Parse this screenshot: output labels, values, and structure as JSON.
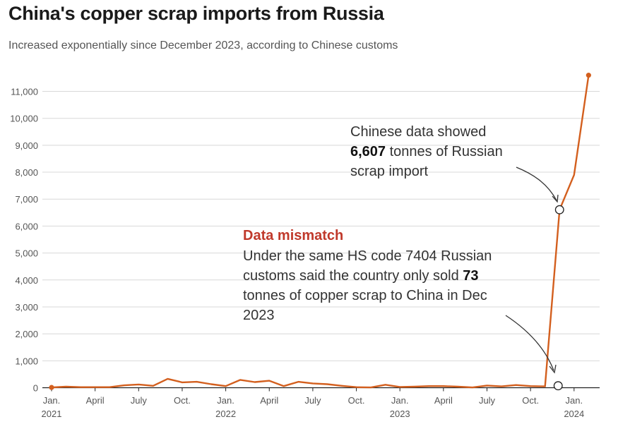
{
  "title": "China's copper scrap imports from Russia",
  "subtitle": "Increased exponentially since  December 2023, according to Chinese customs",
  "colors": {
    "line": "#d35f1e",
    "grid": "#d8d8d8",
    "axis": "#222222",
    "highlight": "#c0392b"
  },
  "chart_data": {
    "type": "line",
    "title": "China's copper scrap imports from Russia",
    "xlabel": "",
    "ylabel": "",
    "ylim": [
      0,
      11600
    ],
    "yticks": [
      0,
      1000,
      2000,
      3000,
      4000,
      5000,
      6000,
      7000,
      8000,
      9000,
      10000,
      11000
    ],
    "ytick_labels": [
      "0",
      "1,000",
      "2,000",
      "3,000",
      "4,000",
      "5,000",
      "6,000",
      "7,000",
      "8,000",
      "9,000",
      "10,000",
      "11,000"
    ],
    "xticks": [
      {
        "label": "Jan.",
        "sub": "2021",
        "index": 0
      },
      {
        "label": "April",
        "sub": "",
        "index": 3
      },
      {
        "label": "July",
        "sub": "",
        "index": 6
      },
      {
        "label": "Oct.",
        "sub": "",
        "index": 9
      },
      {
        "label": "Jan.",
        "sub": "2022",
        "index": 12
      },
      {
        "label": "April",
        "sub": "",
        "index": 15
      },
      {
        "label": "July",
        "sub": "",
        "index": 18
      },
      {
        "label": "Oct.",
        "sub": "",
        "index": 21
      },
      {
        "label": "Jan.",
        "sub": "2023",
        "index": 24
      },
      {
        "label": "April",
        "sub": "",
        "index": 27
      },
      {
        "label": "July",
        "sub": "",
        "index": 30
      },
      {
        "label": "Oct.",
        "sub": "",
        "index": 33
      },
      {
        "label": "Jan.",
        "sub": "2024",
        "index": 36
      }
    ],
    "x": [
      "2021-01",
      "2021-02",
      "2021-03",
      "2021-04",
      "2021-05",
      "2021-06",
      "2021-07",
      "2021-08",
      "2021-09",
      "2021-10",
      "2021-11",
      "2021-12",
      "2022-01",
      "2022-02",
      "2022-03",
      "2022-04",
      "2022-05",
      "2022-06",
      "2022-07",
      "2022-08",
      "2022-09",
      "2022-10",
      "2022-11",
      "2022-12",
      "2023-01",
      "2023-02",
      "2023-03",
      "2023-04",
      "2023-05",
      "2023-06",
      "2023-07",
      "2023-08",
      "2023-09",
      "2023-10",
      "2023-11",
      "2023-12",
      "2024-01",
      "2024-02"
    ],
    "series": [
      {
        "values": [
          10,
          40,
          20,
          20,
          20,
          90,
          120,
          70,
          330,
          200,
          220,
          130,
          60,
          290,
          210,
          260,
          60,
          220,
          160,
          130,
          70,
          20,
          10,
          110,
          30,
          40,
          60,
          60,
          40,
          10,
          80,
          50,
          100,
          60,
          50,
          6607,
          7900,
          11600
        ]
      }
    ],
    "highlighted_points": [
      {
        "x": "2023-12",
        "value": 6607,
        "label": "Chinese customs"
      },
      {
        "x": "2023-12",
        "value": 73,
        "label": "Russian customs"
      }
    ],
    "annotations": {
      "china": {
        "line1": "Chinese data showed",
        "value": "6,607",
        "line2_rest": " tonnes of Russian",
        "line3": "scrap import"
      },
      "mismatch": {
        "heading": "Data mismatch",
        "line1": "Under the same HS code 7404 Russian",
        "line2_pre": "customs said the country only sold ",
        "value": "73",
        "line3": "tonnes of copper scrap to China in Dec",
        "line4": "2023"
      }
    },
    "grid": true,
    "legend": "none"
  }
}
